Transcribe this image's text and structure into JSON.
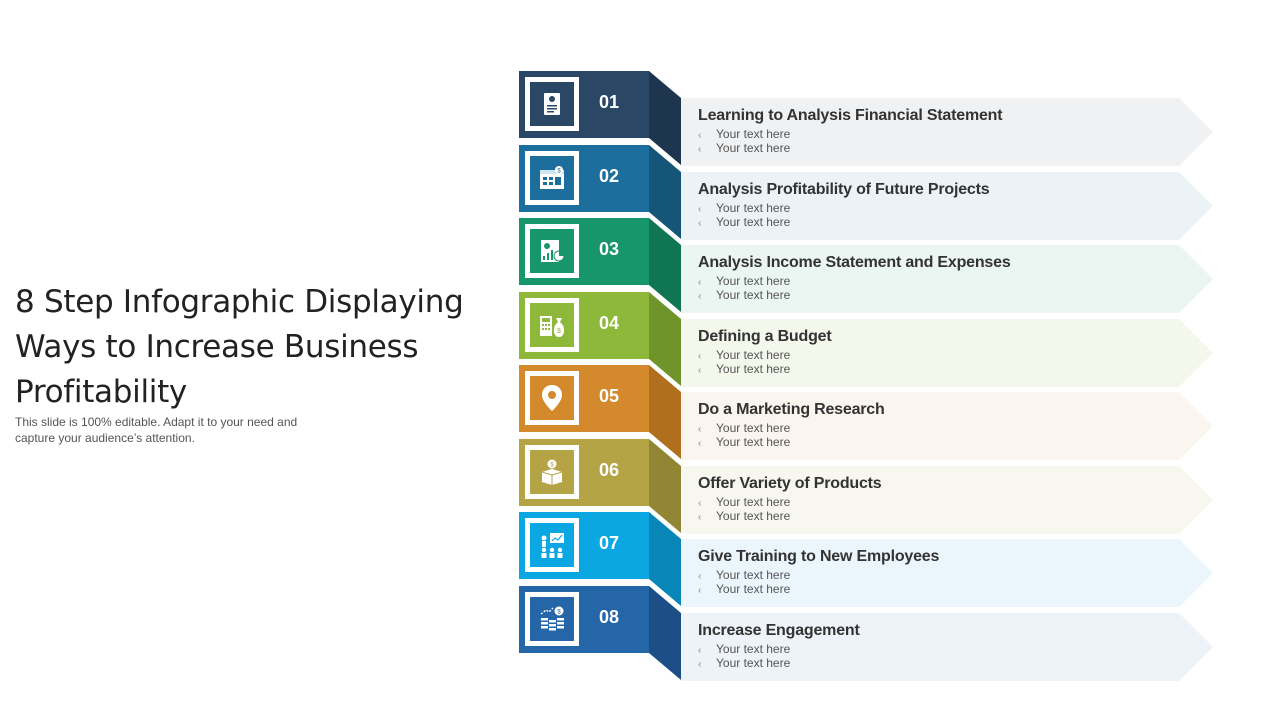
{
  "title": "8 Step Infographic Displaying Ways to Increase Business Profitability",
  "subtitle": "This slide is 100% editable. Adapt it to your need and capture your audience’s attention.",
  "bullet_mark": "‹",
  "steps": [
    {
      "number": "01",
      "heading": "Learning to Analysis Financial Statement",
      "bullets": [
        "Your text here",
        "Your text here"
      ],
      "color": "#2a4766",
      "fold_color": "#1e3550",
      "arrow_color": "#eff1f3",
      "icon": "financial-statement-icon"
    },
    {
      "number": "02",
      "heading": "Analysis Profitability of Future Projects",
      "bullets": [
        "Your text here",
        "Your text here"
      ],
      "color": "#1c6e9c",
      "fold_color": "#145578",
      "arrow_color": "#ebf3f7",
      "icon": "calendar-finance-icon"
    },
    {
      "number": "03",
      "heading": "Analysis Income Statement and Expenses",
      "bullets": [
        "Your text here",
        "Your text here"
      ],
      "color": "#17956b",
      "fold_color": "#0f7552",
      "arrow_color": "#ebf5f1",
      "icon": "income-report-icon"
    },
    {
      "number": "04",
      "heading": "Defining a Budget",
      "bullets": [
        "Your text here",
        "Your text here"
      ],
      "color": "#8db83a",
      "fold_color": "#6f952a",
      "arrow_color": "#f3f7ec",
      "icon": "budget-icon"
    },
    {
      "number": "05",
      "heading": "Do a Marketing Research",
      "bullets": [
        "Your text here",
        "Your text here"
      ],
      "color": "#d48a2c",
      "fold_color": "#b06f1d",
      "arrow_color": "#faf5ee",
      "icon": "location-pin-icon"
    },
    {
      "number": "06",
      "heading": "Offer Variety of Products",
      "bullets": [
        "Your text here",
        "Your text here"
      ],
      "color": "#b4a446",
      "fold_color": "#928533",
      "arrow_color": "#f7f7ef",
      "icon": "product-box-icon"
    },
    {
      "number": "07",
      "heading": "Give Training to New Employees",
      "bullets": [
        "Your text here",
        "Your text here"
      ],
      "color": "#0ba7e3",
      "fold_color": "#0986b8",
      "arrow_color": "#ebf6fc",
      "icon": "training-icon"
    },
    {
      "number": "08",
      "heading": "Increase Engagement",
      "bullets": [
        "Your text here",
        "Your text here"
      ],
      "color": "#2566a8",
      "fold_color": "#1b4f86",
      "arrow_color": "#edf3f8",
      "icon": "coins-growth-icon"
    }
  ]
}
